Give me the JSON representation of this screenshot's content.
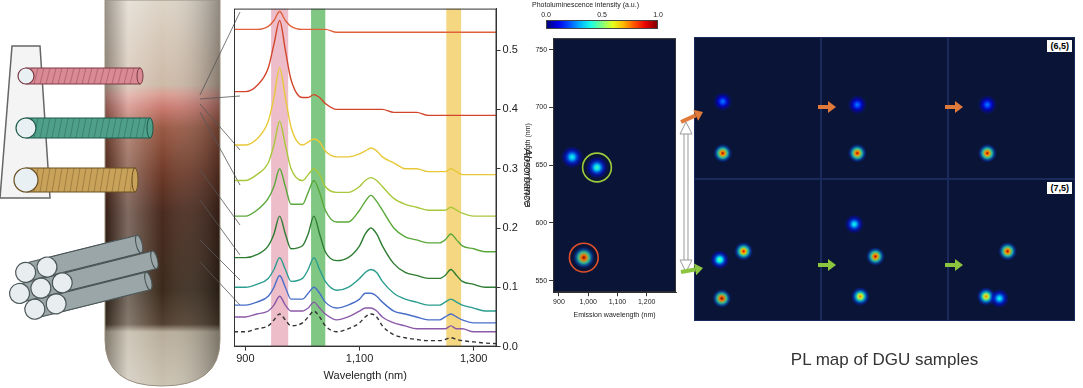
{
  "chart_data": [
    {
      "type": "line",
      "x_label": "Wavelength (nm)",
      "y_label": "Absorbance",
      "x": [
        880,
        900,
        920,
        940,
        950,
        960,
        970,
        980,
        1000,
        1010,
        1020,
        1030,
        1040,
        1060,
        1080,
        1100,
        1110,
        1120,
        1130,
        1140,
        1160,
        1180,
        1200,
        1220,
        1240,
        1250,
        1260,
        1270,
        1280,
        1300,
        1320,
        1340
      ],
      "series": [
        {
          "color": "#e0603a",
          "values": [
            0.535,
            0.535,
            0.535,
            0.54,
            0.55,
            0.565,
            0.55,
            0.54,
            0.535,
            0.535,
            0.535,
            0.535,
            0.535,
            0.53,
            0.53,
            0.53,
            0.53,
            0.53,
            0.53,
            0.53,
            0.53,
            0.53,
            0.53,
            0.53,
            0.53,
            0.53,
            0.53,
            0.53,
            0.53,
            0.53,
            0.53,
            0.53
          ]
        },
        {
          "color": "#d2452a",
          "values": [
            0.43,
            0.43,
            0.44,
            0.47,
            0.51,
            0.55,
            0.5,
            0.45,
            0.42,
            0.42,
            0.425,
            0.42,
            0.41,
            0.4,
            0.4,
            0.4,
            0.4,
            0.4,
            0.4,
            0.4,
            0.395,
            0.395,
            0.395,
            0.39,
            0.39,
            0.39,
            0.39,
            0.39,
            0.39,
            0.39,
            0.39,
            0.39
          ]
        },
        {
          "color": "#e8c838",
          "values": [
            0.34,
            0.34,
            0.35,
            0.38,
            0.42,
            0.47,
            0.42,
            0.37,
            0.34,
            0.345,
            0.35,
            0.345,
            0.33,
            0.32,
            0.32,
            0.325,
            0.33,
            0.335,
            0.33,
            0.32,
            0.31,
            0.3,
            0.3,
            0.295,
            0.295,
            0.295,
            0.3,
            0.295,
            0.29,
            0.29,
            0.29,
            0.29
          ]
        },
        {
          "color": "#a8c83a",
          "values": [
            0.28,
            0.28,
            0.29,
            0.31,
            0.34,
            0.38,
            0.34,
            0.3,
            0.28,
            0.29,
            0.3,
            0.29,
            0.27,
            0.26,
            0.26,
            0.27,
            0.28,
            0.285,
            0.28,
            0.27,
            0.25,
            0.24,
            0.235,
            0.23,
            0.23,
            0.23,
            0.235,
            0.23,
            0.225,
            0.22,
            0.22,
            0.22
          ]
        },
        {
          "color": "#5aa83a",
          "values": [
            0.22,
            0.22,
            0.23,
            0.25,
            0.27,
            0.3,
            0.27,
            0.24,
            0.24,
            0.26,
            0.28,
            0.26,
            0.23,
            0.21,
            0.21,
            0.23,
            0.245,
            0.255,
            0.245,
            0.23,
            0.2,
            0.185,
            0.18,
            0.175,
            0.175,
            0.18,
            0.19,
            0.18,
            0.17,
            0.165,
            0.16,
            0.16
          ]
        },
        {
          "color": "#2e7d32",
          "values": [
            0.15,
            0.15,
            0.155,
            0.17,
            0.19,
            0.22,
            0.19,
            0.165,
            0.17,
            0.19,
            0.22,
            0.19,
            0.16,
            0.145,
            0.15,
            0.17,
            0.19,
            0.2,
            0.19,
            0.17,
            0.14,
            0.125,
            0.12,
            0.115,
            0.115,
            0.12,
            0.13,
            0.12,
            0.11,
            0.105,
            0.1,
            0.1
          ]
        },
        {
          "color": "#2a9d8f",
          "values": [
            0.1,
            0.1,
            0.105,
            0.115,
            0.13,
            0.15,
            0.13,
            0.11,
            0.115,
            0.13,
            0.15,
            0.13,
            0.11,
            0.095,
            0.1,
            0.115,
            0.125,
            0.13,
            0.125,
            0.11,
            0.09,
            0.08,
            0.075,
            0.07,
            0.07,
            0.075,
            0.08,
            0.075,
            0.07,
            0.065,
            0.06,
            0.06
          ]
        },
        {
          "color": "#4a6fc8",
          "values": [
            0.07,
            0.07,
            0.075,
            0.085,
            0.1,
            0.12,
            0.1,
            0.08,
            0.08,
            0.09,
            0.1,
            0.09,
            0.075,
            0.065,
            0.07,
            0.08,
            0.09,
            0.09,
            0.085,
            0.075,
            0.06,
            0.055,
            0.05,
            0.045,
            0.045,
            0.05,
            0.055,
            0.05,
            0.045,
            0.04,
            0.04,
            0.04
          ]
        },
        {
          "color": "#8a5aa8",
          "values": [
            0.05,
            0.05,
            0.055,
            0.06,
            0.07,
            0.085,
            0.07,
            0.06,
            0.06,
            0.065,
            0.075,
            0.065,
            0.055,
            0.045,
            0.05,
            0.06,
            0.065,
            0.065,
            0.06,
            0.05,
            0.04,
            0.035,
            0.03,
            0.03,
            0.03,
            0.03,
            0.035,
            0.03,
            0.03,
            0.025,
            0.025,
            0.025
          ]
        },
        {
          "color": "#333333",
          "line_style": "dashed",
          "values": [
            0.025,
            0.025,
            0.03,
            0.035,
            0.045,
            0.055,
            0.045,
            0.035,
            0.04,
            0.05,
            0.06,
            0.05,
            0.035,
            0.025,
            0.03,
            0.04,
            0.05,
            0.055,
            0.05,
            0.035,
            0.02,
            0.015,
            0.012,
            0.01,
            0.01,
            0.012,
            0.015,
            0.012,
            0.01,
            0.008,
            0.006,
            0.005
          ]
        }
      ],
      "xlim": [
        880,
        1340
      ],
      "xticks": [
        900,
        {
          "value": 1100,
          "label": "1,100"
        },
        {
          "value": 1300,
          "label": "1,300"
        }
      ],
      "ylim": [
        0,
        0.57
      ],
      "yticks": [
        {
          "value": 0,
          "label": "0.0"
        },
        0.1,
        0.2,
        0.3,
        0.4,
        0.5
      ],
      "bands": [
        {
          "x": [
            945,
            975
          ],
          "color": "#e6a1b3"
        },
        {
          "x": [
            1015,
            1040
          ],
          "color": "#4caf50"
        },
        {
          "x": [
            1252,
            1278
          ],
          "color": "#f0c64a"
        }
      ],
      "grid": false
    },
    {
      "type": "heatmap",
      "x_label": "Emission wavelength (nm)",
      "y_label": "Excitation wavelength (nm)",
      "xlim": [
        880,
        1300
      ],
      "xticks": [
        900,
        {
          "value": 1000,
          "label": "1,000"
        },
        {
          "value": 1100,
          "label": "1,100"
        },
        {
          "value": 1200,
          "label": "1,200"
        }
      ],
      "ylim": [
        540,
        760
      ],
      "yticks": [
        550,
        600,
        650,
        700,
        750
      ],
      "spots": [
        {
          "x": 985,
          "y": 570,
          "value": 1.0
        },
        {
          "x": 1030,
          "y": 648,
          "value": 0.45
        },
        {
          "x": 945,
          "y": 657,
          "value": 0.4
        }
      ],
      "highlights": [
        {
          "x": 985,
          "y": 570,
          "color": "#e0502a"
        },
        {
          "x": 1030,
          "y": 648,
          "color": "#9ccc3c"
        }
      ],
      "colorbar": {
        "title": "Photoluminescence intensity (a.u.)",
        "range": [
          0,
          1
        ],
        "ticks": [
          {
            "value": 0,
            "label": "0.0"
          },
          {
            "value": 0.5,
            "label": "0.5"
          },
          {
            "value": 1,
            "label": "1.0"
          }
        ]
      },
      "grid": false
    },
    {
      "type": "heatmap",
      "tick_labels": false,
      "xlim": [
        880,
        1300
      ],
      "ylim": [
        540,
        760
      ],
      "rows": [
        {
          "label": "(6,5)",
          "panels": [
            {
              "spots": [
                {
                  "x": 975,
                  "y": 580,
                  "value": 0.95
                },
                {
                  "x": 975,
                  "y": 660,
                  "value": 0.25
                }
              ]
            },
            {
              "spots": [
                {
                  "x": 1000,
                  "y": 580,
                  "value": 0.95
                },
                {
                  "x": 1000,
                  "y": 655,
                  "value": 0.25
                }
              ]
            },
            {
              "spots": [
                {
                  "x": 1010,
                  "y": 580,
                  "value": 0.95
                },
                {
                  "x": 1010,
                  "y": 655,
                  "value": 0.25
                }
              ]
            }
          ]
        },
        {
          "label": "(7,5)",
          "panels": [
            {
              "spots": [
                {
                  "x": 972,
                  "y": 575,
                  "value": 1.0
                },
                {
                  "x": 965,
                  "y": 635,
                  "value": 0.5
                },
                {
                  "x": 1044,
                  "y": 648,
                  "value": 0.9
                }
              ]
            },
            {
              "spots": [
                {
                  "x": 1010,
                  "y": 578,
                  "value": 0.75
                },
                {
                  "x": 1060,
                  "y": 640,
                  "value": 0.95
                },
                {
                  "x": 990,
                  "y": 690,
                  "value": 0.4
                }
              ]
            },
            {
              "spots": [
                {
                  "x": 1006,
                  "y": 578,
                  "value": 0.75
                },
                {
                  "x": 1077,
                  "y": 648,
                  "value": 0.95
                },
                {
                  "x": 1050,
                  "y": 575,
                  "value": 0.4
                }
              ]
            }
          ]
        }
      ],
      "grid": false
    }
  ],
  "caption": "PL map of DGU samples"
}
